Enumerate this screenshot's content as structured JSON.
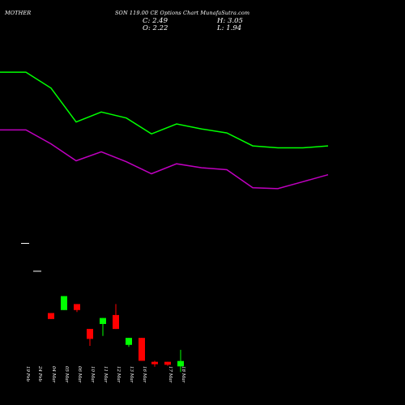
{
  "header": {
    "symbol": "MOTHERSON",
    "symbol_part1": "MOTHER",
    "symbol_part2": "SON",
    "description": "119.00 CE Options Chart Munafa",
    "description_full": "SON 119.00 CE Options Chart Munafa",
    "site": "MunafaSutra.com",
    "center_text": "SON 119.00 CE Options Chart MunafaSutra.com"
  },
  "ohlc": {
    "close_label": "C: 2.49",
    "open_label": "O: 2.22",
    "high_label": "H: 3.05",
    "low_label": "L: 1.94"
  },
  "colors": {
    "background": "#000000",
    "bull": "#00ff00",
    "bear": "#ff0000",
    "upper_band": "#00ff00",
    "lower_band": "#c000c0",
    "dash": "#ffffff"
  },
  "chart_data": {
    "type": "candlestick",
    "x_labels": [
      "19 Feb",
      "24 Feb",
      "04 Mar",
      "05 Mar",
      "06 Mar",
      "10 Mar",
      "11 Mar",
      "12 Mar",
      "13 Mar",
      "16 Mar",
      "17 Mar",
      "18 Mar"
    ],
    "candles": [
      {
        "label": "19 Feb",
        "open": 8.4,
        "close": 8.4,
        "high": 8.4,
        "low": 8.4,
        "dir": "flat"
      },
      {
        "label": "24 Feb",
        "open": 7.0,
        "close": 7.0,
        "high": 7.0,
        "low": 7.0,
        "dir": "flat"
      },
      {
        "label": "04 Mar",
        "open": 4.9,
        "close": 4.6,
        "high": 4.9,
        "low": 4.6,
        "dir": "down"
      },
      {
        "label": "05 Mar",
        "open": 5.05,
        "close": 5.75,
        "high": 5.75,
        "low": 5.05,
        "dir": "up"
      },
      {
        "label": "06 Mar",
        "open": 5.35,
        "close": 5.05,
        "high": 5.35,
        "low": 4.95,
        "dir": "down"
      },
      {
        "label": "10 Mar",
        "open": 4.1,
        "close": 3.6,
        "high": 4.1,
        "low": 3.25,
        "dir": "down"
      },
      {
        "label": "11 Mar",
        "open": 4.35,
        "close": 4.65,
        "high": 4.65,
        "low": 3.75,
        "dir": "up"
      },
      {
        "label": "12 Mar",
        "open": 4.8,
        "close": 4.1,
        "high": 5.35,
        "low": 4.1,
        "dir": "down"
      },
      {
        "label": "13 Mar",
        "open": 3.3,
        "close": 3.65,
        "high": 3.65,
        "low": 3.2,
        "dir": "up"
      },
      {
        "label": "16 Mar",
        "open": 3.65,
        "close": 2.5,
        "high": 3.65,
        "low": 2.5,
        "dir": "down"
      },
      {
        "label": "17 Mar",
        "open": 2.45,
        "close": 2.3,
        "high": 2.45,
        "low": 2.25,
        "dir": "down"
      },
      {
        "label": "18 Mar",
        "open": 2.22,
        "close": 2.49,
        "high": 3.05,
        "low": 1.94,
        "dir": "up"
      }
    ],
    "extra_red_candle": {
      "label": "17 Mar b",
      "open": 2.45,
      "close": 2.35,
      "high": 2.5,
      "low": 2.2
    },
    "upper_band": [
      17.0,
      17.0,
      16.2,
      14.5,
      15.0,
      14.7,
      13.9,
      14.4,
      14.15,
      13.95,
      13.3,
      13.2,
      13.2,
      13.3
    ],
    "lower_band": [
      14.1,
      14.1,
      13.4,
      12.55,
      13.0,
      12.5,
      11.9,
      12.4,
      12.2,
      12.1,
      11.2,
      11.15,
      11.5,
      11.85
    ],
    "ylim": [
      1.5,
      19.0
    ],
    "grid": false
  }
}
